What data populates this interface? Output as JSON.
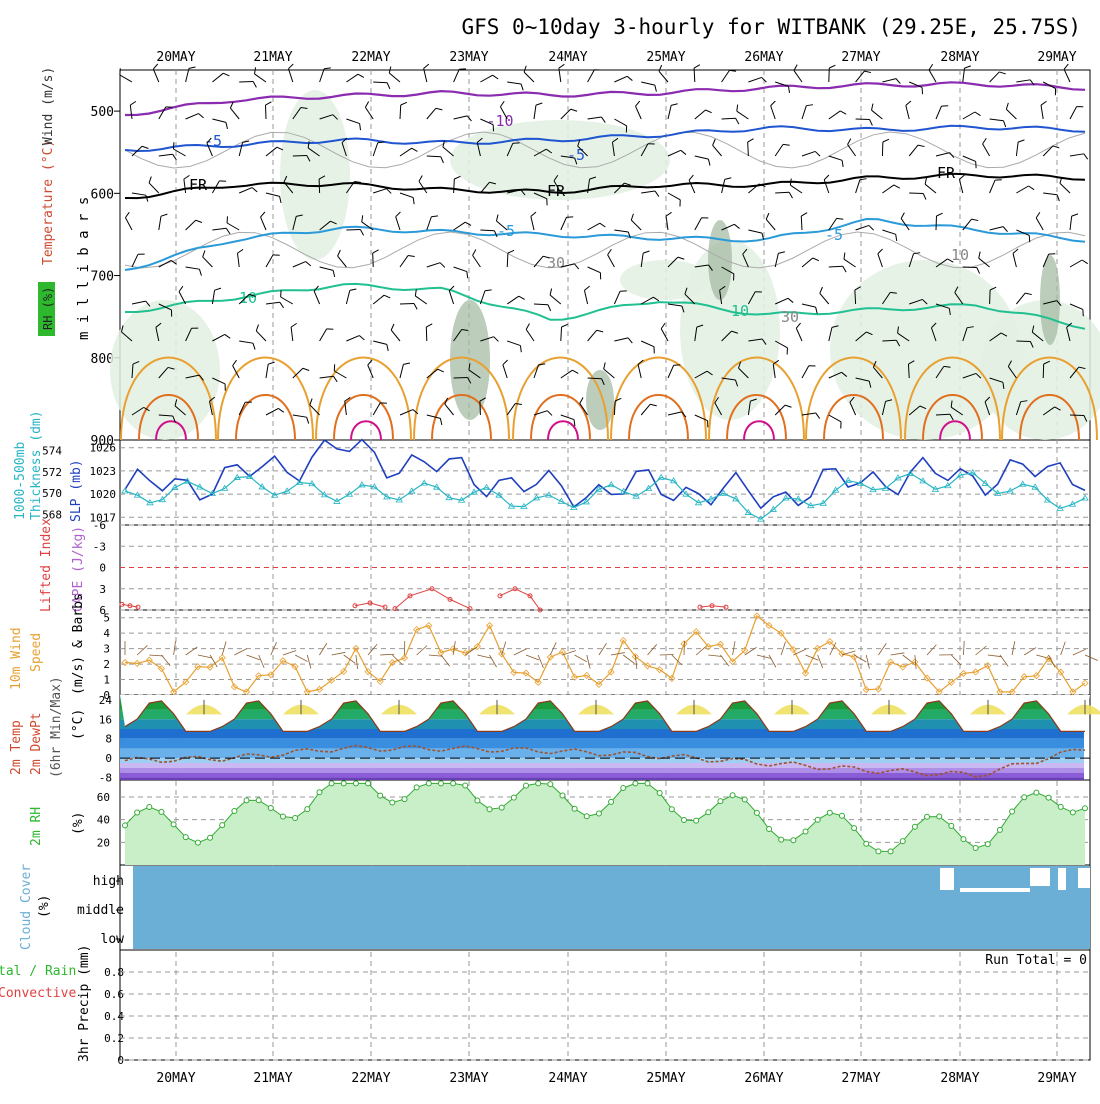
{
  "title": "GFS 0~10day 3-hourly for WITBANK (29.25E, 25.75S)",
  "dates": [
    "20MAY",
    "21MAY",
    "22MAY",
    "23MAY",
    "24MAY",
    "25MAY",
    "26MAY",
    "27MAY",
    "28MAY",
    "29MAY"
  ],
  "colors": {
    "grid": "#999999",
    "sky": "#6baed6",
    "rh_fill": "#e3f0e3",
    "rh_dark": "#9fb8a0",
    "slp": "#1f3fbf",
    "thick": "#27b5c4",
    "wind10": "#e8a030",
    "li": "#e04040",
    "cape": "#b060d0",
    "purple": "#8a2bb0",
    "blue": "#1f55d0",
    "lblue": "#2a9ad8",
    "green": "#20c090"
  },
  "panels": {
    "upper": {
      "left_label_parts": [
        "Wind (m/s)",
        "Temperature (°C)",
        "RH (%)"
      ],
      "axis_title": "m i l l i b a r s",
      "yticks": [
        "500",
        "600",
        "700",
        "800",
        "900"
      ],
      "contour_labels": [
        "-10",
        "-5",
        "-5",
        "FR",
        "FR",
        "FR",
        "-5",
        "-5",
        "10",
        "10",
        "30",
        "10",
        "30"
      ]
    },
    "slp": {
      "left_label_a": "1000-500mb",
      "left_label_b": "Thickness (dm)",
      "right_label": "SLP (mb)",
      "yticks_left": [
        "574",
        "572",
        "570",
        "568"
      ],
      "yticks_right": [
        "1026",
        "1023",
        "1020",
        "1017"
      ]
    },
    "li": {
      "left_label_a": "Lifted Index",
      "left_label_b": "CAPE (J/kg)",
      "yticks": [
        "-6",
        "-3",
        "0",
        "3",
        "6"
      ]
    },
    "wind10": {
      "left_label_a": "10m Wind",
      "left_label_b": "Speed",
      "left_label_c": "(m/s) & Barbs",
      "yticks": [
        "5",
        "4",
        "3",
        "2",
        "1",
        "0"
      ]
    },
    "temp": {
      "left_label_a": "2m Temp",
      "left_label_b": "2m DewPt",
      "left_label_c": "(6hr Min/Max)",
      "unit": "(°C)",
      "yticks": [
        "24",
        "16",
        "8",
        "0",
        "-8"
      ]
    },
    "rh": {
      "left_label": "2m RH",
      "unit": "(%)",
      "yticks": [
        "60",
        "40",
        "20"
      ]
    },
    "cloud": {
      "left_label": "Cloud Cover",
      "unit": "(%)",
      "levels": [
        "high",
        "middle",
        "low"
      ]
    },
    "precip": {
      "left_label_a": "tal / Rain",
      "left_label_b": "Convective",
      "left_label_c": "3hr Precip (mm)",
      "yticks": [
        "0.8",
        "0.6",
        "0.4",
        "0.2",
        "0"
      ],
      "run_total": "Run Total = 0"
    }
  },
  "chart_data": [
    {
      "type": "line",
      "title": "1000-500mb Thickness (dm) / SLP (mb)",
      "x": [
        "20MAY",
        "21MAY",
        "22MAY",
        "23MAY",
        "24MAY",
        "25MAY",
        "26MAY",
        "27MAY",
        "28MAY",
        "29MAY"
      ],
      "series": [
        {
          "name": "SLP (mb)",
          "values": [
            1020.6,
            1022.0,
            1025.8,
            1023.2,
            1020.4,
            1021.0,
            1019.6,
            1022.2,
            1022.4,
            1023.0
          ]
        },
        {
          "name": "1000-500mb Thickness (dm)",
          "values": [
            569.4,
            571.0,
            570.0,
            570.2,
            569.0,
            570.9,
            568.2,
            571.0,
            571.2,
            568.8
          ]
        }
      ],
      "ylim_left": [
        567,
        575
      ],
      "ylim_right": [
        1016,
        1027
      ]
    },
    {
      "type": "line",
      "title": "Lifted Index / CAPE (J/kg)",
      "x": [
        "20MAY",
        "22MAY",
        "22.5MAY",
        "23.5MAY",
        "25.5MAY"
      ],
      "series": [
        {
          "name": "Lifted Index",
          "values": [
            5.2,
            5.2,
            3.0,
            3.0,
            5.5
          ]
        }
      ],
      "ylim": [
        -6,
        6
      ]
    },
    {
      "type": "line",
      "title": "10m Wind Speed (m/s)",
      "x": [
        "20MAY",
        "21MAY",
        "22MAY",
        "23MAY",
        "24MAY",
        "25MAY",
        "26MAY",
        "27MAY",
        "28MAY",
        "29MAY"
      ],
      "series": [
        {
          "name": "10m Wind Speed",
          "values": [
            1.5,
            1.2,
            1.0,
            3.8,
            1.4,
            2.2,
            4.0,
            1.5,
            0.8,
            1.2
          ]
        }
      ],
      "ylim": [
        0,
        5.5
      ]
    },
    {
      "type": "area",
      "title": "2m Temp / 2m DewPt (°C)",
      "x": [
        "20MAY",
        "21MAY",
        "22MAY",
        "23MAY",
        "24MAY",
        "25MAY",
        "26MAY",
        "27MAY",
        "28MAY",
        "29MAY"
      ],
      "series": [
        {
          "name": "2m Temp max",
          "values": [
            22,
            22,
            23,
            22,
            22,
            23,
            22,
            24,
            23,
            21
          ]
        },
        {
          "name": "2m Temp min",
          "values": [
            10,
            10,
            11,
            10,
            10,
            10,
            10,
            10,
            10,
            11
          ]
        },
        {
          "name": "2m DewPt",
          "values": [
            -1,
            0,
            4,
            4,
            3,
            1,
            -2,
            -5,
            -7,
            4
          ]
        }
      ],
      "ylim": [
        -9,
        26
      ]
    },
    {
      "type": "area",
      "title": "2m RH (%)",
      "x": [
        "20MAY",
        "21MAY",
        "22MAY",
        "23MAY",
        "24MAY",
        "25MAY",
        "26MAY",
        "27MAY",
        "28MAY",
        "29MAY"
      ],
      "series": [
        {
          "name": "2m RH",
          "values": [
            35,
            36,
            72,
            70,
            58,
            60,
            40,
            25,
            30,
            65
          ]
        }
      ],
      "ylim": [
        0,
        75
      ]
    },
    {
      "type": "bar",
      "title": "3hr Precip (mm)",
      "x": [
        "20MAY",
        "21MAY",
        "22MAY",
        "23MAY",
        "24MAY",
        "25MAY",
        "26MAY",
        "27MAY",
        "28MAY",
        "29MAY"
      ],
      "values": [
        0,
        0,
        0,
        0,
        0,
        0,
        0,
        0,
        0,
        0
      ],
      "ylim": [
        0,
        1
      ]
    }
  ]
}
